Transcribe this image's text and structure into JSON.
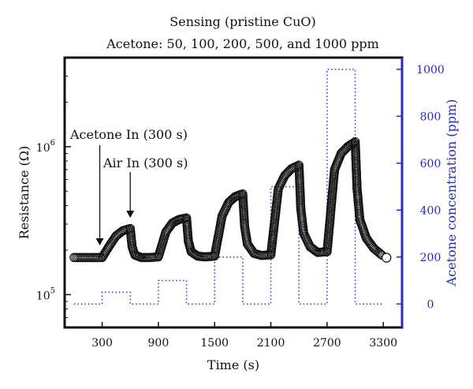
{
  "chart_data": {
    "type": "line",
    "title": "Sensing (pristine CuO)",
    "subtitle": "Acetone: 50, 100, 200, 500, and 1000 ppm",
    "xlabel": "Time (s)",
    "ylabel_left": "Resistance (Ω)",
    "ylabel_right": "Acetone concentration (ppm)",
    "xlim": [
      -100,
      3500
    ],
    "x_ticks": [
      300,
      900,
      1500,
      2100,
      2700,
      3300
    ],
    "x_tick_labels": [
      "300",
      "900",
      "1500",
      "2100",
      "2700",
      "3300"
    ],
    "y_left_scale": "log",
    "y_left_lim": [
      60000,
      4000000
    ],
    "y_left_ticks": [
      100000,
      1000000
    ],
    "y_left_tick_label_bases": [
      "10",
      "10"
    ],
    "y_left_tick_label_exps": [
      "5",
      "6"
    ],
    "y_right_lim": [
      -100,
      1050
    ],
    "y_right_ticks": [
      0,
      200,
      400,
      600,
      800,
      1000
    ],
    "y_right_tick_labels": [
      "0",
      "200",
      "400",
      "600",
      "800",
      "1000"
    ],
    "grid": false,
    "resistance": {
      "marker": "open-circle",
      "color": "#111111",
      "x": [
        0,
        300,
        380,
        450,
        520,
        600,
        620,
        650,
        720,
        800,
        900,
        980,
        1050,
        1120,
        1200,
        1220,
        1250,
        1320,
        1400,
        1500,
        1580,
        1650,
        1720,
        1800,
        1820,
        1850,
        1920,
        2000,
        2100,
        2180,
        2250,
        2320,
        2400,
        2420,
        2450,
        2520,
        2600,
        2700,
        2780,
        2850,
        2920,
        3000,
        3020,
        3050,
        3120,
        3200,
        3300
      ],
      "y": [
        178000,
        178000,
        215000,
        250000,
        270000,
        280000,
        210000,
        185000,
        178000,
        178000,
        180000,
        265000,
        305000,
        322000,
        330000,
        230000,
        195000,
        182000,
        180000,
        182000,
        340000,
        420000,
        460000,
        480000,
        290000,
        220000,
        190000,
        184000,
        186000,
        520000,
        640000,
        710000,
        750000,
        380000,
        260000,
        210000,
        193000,
        195000,
        700000,
        900000,
        1000000,
        1080000,
        520000,
        320000,
        240000,
        205000,
        182000
      ]
    },
    "concentration": {
      "style": "dotted",
      "color": "#3a3aca",
      "x": [
        0,
        300,
        300,
        600,
        600,
        900,
        900,
        1200,
        1200,
        1500,
        1500,
        1800,
        1800,
        2100,
        2100,
        2400,
        2400,
        2700,
        2700,
        3000,
        3000,
        3300
      ],
      "y": [
        0,
        0,
        50,
        50,
        0,
        0,
        100,
        100,
        0,
        0,
        200,
        200,
        0,
        0,
        500,
        500,
        0,
        0,
        1000,
        1000,
        0,
        0
      ]
    },
    "annotations": [
      {
        "text": "Acetone In (300 s)",
        "x": 300
      },
      {
        "text": "Air In (300 s)",
        "x": 600
      }
    ]
  }
}
